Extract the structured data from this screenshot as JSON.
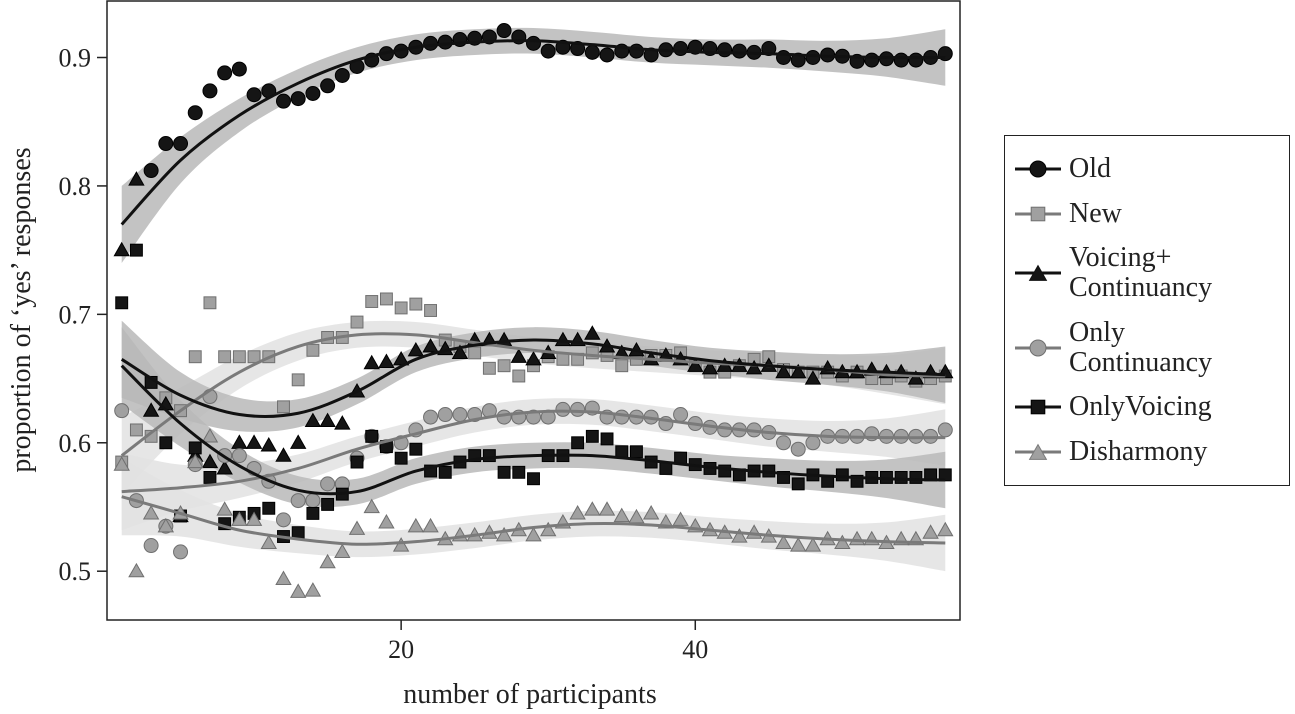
{
  "chart_data": {
    "type": "scatter",
    "x_label": "number of participants",
    "y_label": "proportion of ‘yes’ responses",
    "xlim": [
      0,
      58
    ],
    "xticks": [
      20,
      40
    ],
    "ylim": [
      0.462,
      0.944
    ],
    "yticks": [
      0.5,
      0.6,
      0.7,
      0.8,
      0.9
    ],
    "x": [
      1,
      2,
      3,
      4,
      5,
      6,
      7,
      8,
      9,
      10,
      11,
      12,
      13,
      14,
      15,
      16,
      17,
      18,
      19,
      20,
      21,
      22,
      23,
      24,
      25,
      26,
      27,
      28,
      29,
      30,
      31,
      32,
      33,
      34,
      35,
      36,
      37,
      38,
      39,
      40,
      41,
      42,
      43,
      44,
      45,
      46,
      47,
      48,
      49,
      50,
      51,
      52,
      53,
      54,
      55,
      56,
      57
    ],
    "fit_x": [
      1,
      5,
      9,
      13,
      17,
      21,
      25,
      29,
      33,
      37,
      41,
      45,
      49,
      53,
      57
    ],
    "band_halfwidth": [
      0.03,
      0.018,
      0.013,
      0.011,
      0.01,
      0.01,
      0.01,
      0.01,
      0.01,
      0.01,
      0.01,
      0.011,
      0.012,
      0.015,
      0.022
    ],
    "series": [
      {
        "name": "Old",
        "marker": "circle",
        "color": "#151515",
        "band_color": "#b9b9b9",
        "values": [
          null,
          null,
          0.812,
          0.833,
          0.833,
          0.857,
          0.874,
          0.888,
          0.891,
          0.871,
          0.874,
          0.866,
          0.868,
          0.872,
          0.878,
          0.886,
          0.893,
          0.898,
          0.903,
          0.905,
          0.908,
          0.911,
          0.912,
          0.914,
          0.915,
          0.916,
          0.921,
          0.916,
          0.911,
          0.905,
          0.908,
          0.907,
          0.904,
          0.902,
          0.905,
          0.905,
          0.902,
          0.906,
          0.907,
          0.908,
          0.907,
          0.906,
          0.905,
          0.904,
          0.907,
          0.9,
          0.898,
          0.9,
          0.902,
          0.901,
          0.897,
          0.898,
          0.899,
          0.898,
          0.898,
          0.9,
          0.903
        ],
        "fit": [
          0.77,
          0.82,
          0.855,
          0.88,
          0.898,
          0.908,
          0.912,
          0.913,
          0.91,
          0.906,
          0.904,
          0.903,
          0.901,
          0.9,
          0.9
        ]
      },
      {
        "name": "New",
        "marker": "square",
        "color": "#a0a0a0",
        "band_color": "#e2e2e2",
        "values": [
          0.585,
          0.61,
          0.605,
          0.635,
          0.625,
          0.667,
          0.709,
          0.667,
          0.667,
          0.667,
          0.667,
          0.628,
          0.649,
          0.672,
          0.682,
          0.682,
          0.694,
          0.71,
          0.712,
          0.705,
          0.708,
          0.703,
          0.68,
          0.675,
          0.67,
          0.658,
          0.66,
          0.652,
          0.66,
          0.667,
          0.665,
          0.665,
          0.67,
          0.668,
          0.66,
          0.665,
          0.668,
          0.668,
          0.67,
          0.66,
          0.655,
          0.655,
          0.66,
          0.665,
          0.667,
          0.657,
          0.655,
          0.655,
          0.655,
          0.652,
          0.655,
          0.65,
          0.65,
          0.652,
          0.648,
          0.65,
          0.652
        ],
        "fit": [
          0.59,
          0.625,
          0.655,
          0.675,
          0.684,
          0.684,
          0.678,
          0.672,
          0.668,
          0.665,
          0.662,
          0.66,
          0.657,
          0.653,
          0.652
        ]
      },
      {
        "name": "Voicing+\nContinuancy",
        "marker": "triangle",
        "color": "#151515",
        "band_color": "#b9b9b9",
        "values": [
          0.75,
          0.805,
          0.625,
          0.63,
          0.543,
          0.59,
          0.585,
          0.58,
          0.6,
          0.6,
          0.598,
          0.59,
          0.6,
          0.617,
          0.617,
          0.615,
          0.64,
          0.662,
          0.663,
          0.665,
          0.672,
          0.675,
          0.673,
          0.67,
          0.68,
          0.68,
          0.68,
          0.667,
          0.665,
          0.67,
          0.68,
          0.68,
          0.685,
          0.675,
          0.67,
          0.672,
          0.665,
          0.668,
          0.665,
          0.66,
          0.658,
          0.66,
          0.66,
          0.658,
          0.66,
          0.655,
          0.655,
          0.65,
          0.658,
          0.655,
          0.655,
          0.657,
          0.655,
          0.655,
          0.65,
          0.655,
          0.655
        ],
        "fit": [
          0.665,
          0.637,
          0.622,
          0.623,
          0.64,
          0.665,
          0.676,
          0.68,
          0.677,
          0.67,
          0.664,
          0.66,
          0.657,
          0.655,
          0.653
        ]
      },
      {
        "name": "Only\nContinuancy",
        "marker": "circle",
        "color": "#a0a0a0",
        "band_color": "#e2e2e2",
        "values": [
          0.625,
          0.555,
          0.52,
          0.535,
          0.515,
          0.583,
          0.636,
          0.59,
          0.59,
          0.58,
          0.57,
          0.54,
          0.555,
          0.555,
          0.568,
          0.568,
          0.588,
          0.605,
          0.597,
          0.6,
          0.61,
          0.62,
          0.622,
          0.622,
          0.622,
          0.625,
          0.62,
          0.62,
          0.62,
          0.62,
          0.626,
          0.626,
          0.627,
          0.62,
          0.62,
          0.62,
          0.62,
          0.615,
          0.622,
          0.615,
          0.612,
          0.61,
          0.61,
          0.61,
          0.608,
          0.6,
          0.595,
          0.6,
          0.605,
          0.605,
          0.605,
          0.607,
          0.605,
          0.605,
          0.605,
          0.605,
          0.61
        ],
        "fit": [
          0.562,
          0.565,
          0.57,
          0.58,
          0.595,
          0.607,
          0.618,
          0.624,
          0.624,
          0.619,
          0.613,
          0.608,
          0.605,
          0.604,
          0.604
        ]
      },
      {
        "name": "OnlyVoicing",
        "marker": "square",
        "color": "#151515",
        "band_color": "#b9b9b9",
        "values": [
          0.709,
          0.75,
          0.647,
          0.6,
          0.543,
          0.596,
          0.573,
          0.537,
          0.542,
          0.545,
          0.549,
          0.527,
          0.53,
          0.545,
          0.552,
          0.56,
          0.585,
          0.605,
          0.597,
          0.588,
          0.595,
          0.578,
          0.577,
          0.585,
          0.59,
          0.59,
          0.577,
          0.577,
          0.572,
          0.59,
          0.59,
          0.6,
          0.605,
          0.603,
          0.593,
          0.593,
          0.585,
          0.58,
          0.588,
          0.583,
          0.58,
          0.578,
          0.575,
          0.578,
          0.578,
          0.573,
          0.568,
          0.575,
          0.57,
          0.575,
          0.57,
          0.573,
          0.573,
          0.573,
          0.573,
          0.575,
          0.575
        ],
        "fit": [
          0.66,
          0.615,
          0.582,
          0.563,
          0.562,
          0.578,
          0.587,
          0.59,
          0.59,
          0.586,
          0.581,
          0.577,
          0.574,
          0.572,
          0.571
        ]
      },
      {
        "name": "Disharmony",
        "marker": "triangle",
        "color": "#a0a0a0",
        "band_color": "#e2e2e2",
        "values": [
          0.583,
          0.5,
          0.545,
          0.535,
          0.545,
          0.585,
          0.605,
          0.548,
          0.54,
          0.54,
          0.522,
          0.494,
          0.484,
          0.485,
          0.507,
          0.515,
          0.533,
          0.55,
          0.538,
          0.52,
          0.535,
          0.535,
          0.525,
          0.528,
          0.528,
          0.53,
          0.528,
          0.532,
          0.528,
          0.532,
          0.538,
          0.545,
          0.548,
          0.548,
          0.543,
          0.542,
          0.545,
          0.538,
          0.54,
          0.535,
          0.532,
          0.53,
          0.527,
          0.53,
          0.527,
          0.522,
          0.52,
          0.52,
          0.525,
          0.522,
          0.525,
          0.525,
          0.522,
          0.525,
          0.525,
          0.53,
          0.532
        ],
        "fit": [
          0.558,
          0.545,
          0.532,
          0.525,
          0.521,
          0.523,
          0.528,
          0.534,
          0.537,
          0.536,
          0.532,
          0.528,
          0.525,
          0.523,
          0.522
        ]
      }
    ]
  }
}
